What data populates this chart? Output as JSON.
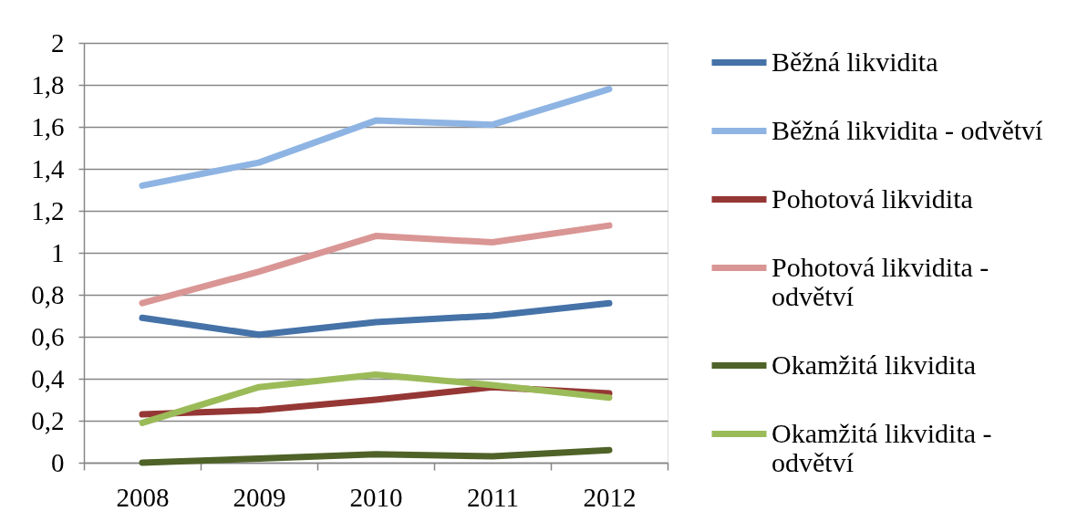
{
  "chart_data": {
    "type": "line",
    "categories": [
      "2008",
      "2009",
      "2010",
      "2011",
      "2012"
    ],
    "series": [
      {
        "name": "Běžná likvidita",
        "color": "#4572a7",
        "values": [
          0.69,
          0.61,
          0.67,
          0.7,
          0.76
        ]
      },
      {
        "name": "Běžná likvidita - odvětví",
        "color": "#8eb4e3",
        "values": [
          1.32,
          1.43,
          1.63,
          1.61,
          1.78
        ]
      },
      {
        "name": "Pohotová likvidita",
        "color": "#953735",
        "values": [
          0.23,
          0.25,
          0.3,
          0.36,
          0.33
        ]
      },
      {
        "name": "Pohotová likvidita - odvětví",
        "color": "#d99694",
        "values": [
          0.76,
          0.91,
          1.08,
          1.05,
          1.13
        ]
      },
      {
        "name": "Okamžitá likvidita",
        "color": "#4f6228",
        "values": [
          0,
          0.02,
          0.04,
          0.03,
          0.06
        ]
      },
      {
        "name": "Okamžitá likvidita - odvětví",
        "color": "#9bbb59",
        "values": [
          0.19,
          0.36,
          0.42,
          0.37,
          0.31
        ]
      }
    ],
    "ylim": [
      0,
      2
    ],
    "yticks": [
      0,
      {
        "value": 0.2,
        "label": "0,2"
      },
      {
        "value": 0.4,
        "label": "0,4"
      },
      {
        "value": 0.6,
        "label": "0,6"
      },
      {
        "value": 0.8,
        "label": "0,8"
      },
      1,
      {
        "value": 1.2,
        "label": "1,2"
      },
      {
        "value": 1.4,
        "label": "1,4"
      },
      {
        "value": 1.6,
        "label": "1,6"
      },
      {
        "value": 1.8,
        "label": "1,8"
      },
      2
    ],
    "grid": "y",
    "legend": "right"
  }
}
